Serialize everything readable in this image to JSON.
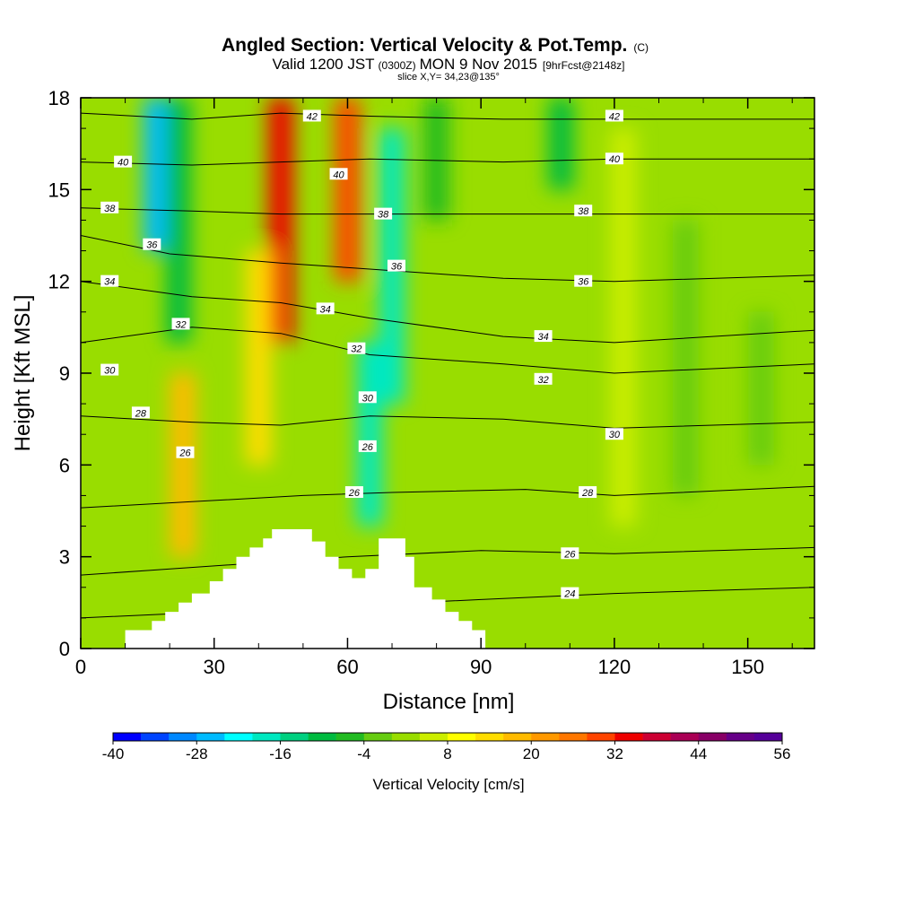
{
  "header": {
    "title": "Angled Section: Vertical Velocity & Pot.Temp.",
    "title_unit": "(C)",
    "valid_a": "Valid 1200 JST",
    "valid_b": "(0300Z)",
    "valid_c": "MON 9 Nov 2015",
    "valid_d": "[9hrFcst@2148z]",
    "slice": "slice X,Y= 34,23@135°"
  },
  "chart_data": {
    "type": "heatmap",
    "xlabel": "Distance [nm]",
    "ylabel": "Height [Kft MSL]",
    "xlim": [
      0,
      165
    ],
    "ylim": [
      0,
      18
    ],
    "x_ticks": [
      0,
      30,
      60,
      90,
      120,
      150
    ],
    "y_ticks": [
      0,
      3,
      6,
      9,
      12,
      15,
      18
    ],
    "grid": false,
    "colorbar": {
      "label": "Vertical Velocity [cm/s]",
      "min": -40,
      "max": 56,
      "step": 4,
      "tick_values": [
        -40,
        -28,
        -16,
        -4,
        8,
        20,
        32,
        44,
        56
      ],
      "colors": [
        "#0000ff",
        "#0044ff",
        "#0088ff",
        "#00bbff",
        "#00ffff",
        "#00e8c0",
        "#00d080",
        "#00bb40",
        "#22bb22",
        "#66cc11",
        "#99dd00",
        "#ccee00",
        "#ffff00",
        "#ffdd00",
        "#ffbb00",
        "#ff9900",
        "#ff7700",
        "#ff4400",
        "#ee0000",
        "#cc0033",
        "#aa0055",
        "#880066",
        "#660088",
        "#550099"
      ]
    },
    "terrain": [
      [
        10,
        0
      ],
      [
        10,
        0.6
      ],
      [
        16,
        0.6
      ],
      [
        16,
        0.9
      ],
      [
        19,
        0.9
      ],
      [
        19,
        1.2
      ],
      [
        22,
        1.2
      ],
      [
        22,
        1.5
      ],
      [
        25,
        1.5
      ],
      [
        25,
        1.8
      ],
      [
        29,
        1.8
      ],
      [
        29,
        2.2
      ],
      [
        32,
        2.2
      ],
      [
        32,
        2.6
      ],
      [
        35,
        2.6
      ],
      [
        35,
        3.0
      ],
      [
        38,
        3.0
      ],
      [
        38,
        3.3
      ],
      [
        41,
        3.3
      ],
      [
        41,
        3.6
      ],
      [
        43,
        3.6
      ],
      [
        43,
        3.9
      ],
      [
        52,
        3.9
      ],
      [
        52,
        3.5
      ],
      [
        55,
        3.5
      ],
      [
        55,
        3.0
      ],
      [
        58,
        3.0
      ],
      [
        58,
        2.6
      ],
      [
        61,
        2.6
      ],
      [
        61,
        2.3
      ],
      [
        64,
        2.3
      ],
      [
        64,
        2.6
      ],
      [
        67,
        2.6
      ],
      [
        67,
        3.6
      ],
      [
        73,
        3.6
      ],
      [
        73,
        3.0
      ],
      [
        75,
        3.0
      ],
      [
        75,
        2.0
      ],
      [
        79,
        2.0
      ],
      [
        79,
        1.6
      ],
      [
        82,
        1.6
      ],
      [
        82,
        1.2
      ],
      [
        85,
        1.2
      ],
      [
        85,
        0.9
      ],
      [
        88,
        0.9
      ],
      [
        88,
        0.6
      ],
      [
        91,
        0.6
      ],
      [
        91,
        0
      ]
    ],
    "wind_features": [
      {
        "x": 17,
        "y0": 18,
        "y1": 13,
        "w": -26
      },
      {
        "x": 22,
        "y0": 18,
        "y1": 10,
        "w": -12
      },
      {
        "x": 45,
        "y0": 18,
        "y1": 10,
        "w": 32
      },
      {
        "x": 60,
        "y0": 18,
        "y1": 12,
        "w": 28
      },
      {
        "x": 23,
        "y0": 9,
        "y1": 3,
        "w": 18
      },
      {
        "x": 40,
        "y0": 13,
        "y1": 6,
        "w": 12
      },
      {
        "x": 65,
        "y0": 10,
        "y1": 4,
        "w": -20
      },
      {
        "x": 70,
        "y0": 17,
        "y1": 8,
        "w": -18
      },
      {
        "x": 80,
        "y0": 18,
        "y1": 14,
        "w": -8
      },
      {
        "x": 108,
        "y0": 18,
        "y1": 15,
        "w": -10
      },
      {
        "x": 122,
        "y0": 17,
        "y1": 4,
        "w": 4
      },
      {
        "x": 136,
        "y0": 14,
        "y1": 5,
        "w": -4
      },
      {
        "x": 153,
        "y0": 11,
        "y1": 6,
        "w": -2
      }
    ],
    "isentropes": [
      {
        "level": 24,
        "label": "24",
        "pts": [
          [
            0,
            1.0
          ],
          [
            30,
            1.2
          ],
          [
            60,
            1.4
          ],
          [
            90,
            1.6
          ],
          [
            120,
            1.8
          ],
          [
            165,
            2.0
          ]
        ]
      },
      {
        "level": 26,
        "label": "26",
        "pts": [
          [
            0,
            2.4
          ],
          [
            30,
            2.7
          ],
          [
            60,
            3.0
          ],
          [
            90,
            3.2
          ],
          [
            120,
            3.1
          ],
          [
            165,
            3.3
          ]
        ]
      },
      {
        "level": 28,
        "label": "28",
        "pts": [
          [
            0,
            4.6
          ],
          [
            25,
            4.8
          ],
          [
            50,
            5.0
          ],
          [
            70,
            5.1
          ],
          [
            100,
            5.2
          ],
          [
            120,
            5.0
          ],
          [
            165,
            5.3
          ]
        ]
      },
      {
        "level": 30,
        "label": "30",
        "pts": [
          [
            0,
            7.6
          ],
          [
            25,
            7.4
          ],
          [
            45,
            7.3
          ],
          [
            65,
            7.6
          ],
          [
            95,
            7.5
          ],
          [
            120,
            7.2
          ],
          [
            165,
            7.4
          ]
        ]
      },
      {
        "level": 32,
        "label": "32",
        "pts": [
          [
            0,
            10.0
          ],
          [
            25,
            10.5
          ],
          [
            45,
            10.3
          ],
          [
            65,
            9.6
          ],
          [
            95,
            9.3
          ],
          [
            120,
            9.0
          ],
          [
            165,
            9.3
          ]
        ]
      },
      {
        "level": 34,
        "label": "34",
        "pts": [
          [
            0,
            12.0
          ],
          [
            25,
            11.5
          ],
          [
            45,
            11.3
          ],
          [
            65,
            10.8
          ],
          [
            95,
            10.2
          ],
          [
            120,
            10.0
          ],
          [
            165,
            10.4
          ]
        ]
      },
      {
        "level": 36,
        "label": "36",
        "pts": [
          [
            0,
            13.5
          ],
          [
            20,
            12.9
          ],
          [
            45,
            12.6
          ],
          [
            65,
            12.4
          ],
          [
            95,
            12.1
          ],
          [
            120,
            12.0
          ],
          [
            165,
            12.2
          ]
        ]
      },
      {
        "level": 38,
        "label": "38",
        "pts": [
          [
            0,
            14.4
          ],
          [
            25,
            14.3
          ],
          [
            45,
            14.2
          ],
          [
            65,
            14.2
          ],
          [
            95,
            14.2
          ],
          [
            120,
            14.2
          ],
          [
            165,
            14.2
          ]
        ]
      },
      {
        "level": 40,
        "label": "40",
        "pts": [
          [
            0,
            15.9
          ],
          [
            25,
            15.8
          ],
          [
            45,
            15.9
          ],
          [
            65,
            16.0
          ],
          [
            95,
            15.9
          ],
          [
            120,
            16.0
          ],
          [
            165,
            16.0
          ]
        ]
      },
      {
        "level": 42,
        "label": "42",
        "pts": [
          [
            0,
            17.5
          ],
          [
            25,
            17.3
          ],
          [
            45,
            17.5
          ],
          [
            65,
            17.4
          ],
          [
            95,
            17.3
          ],
          [
            120,
            17.3
          ],
          [
            165,
            17.3
          ]
        ]
      }
    ],
    "contour_labels": [
      {
        "text": "40",
        "x": 9.5,
        "y": 15.9
      },
      {
        "text": "38",
        "x": 6.5,
        "y": 14.4
      },
      {
        "text": "36",
        "x": 16,
        "y": 13.2
      },
      {
        "text": "34",
        "x": 6.5,
        "y": 12.0
      },
      {
        "text": "32",
        "x": 22.5,
        "y": 10.6
      },
      {
        "text": "30",
        "x": 6.5,
        "y": 9.1
      },
      {
        "text": "28",
        "x": 13.5,
        "y": 7.7
      },
      {
        "text": "26",
        "x": 23.5,
        "y": 6.4
      },
      {
        "text": "42",
        "x": 52,
        "y": 17.4
      },
      {
        "text": "40",
        "x": 58,
        "y": 15.5
      },
      {
        "text": "38",
        "x": 68,
        "y": 14.2
      },
      {
        "text": "36",
        "x": 71,
        "y": 12.5
      },
      {
        "text": "34",
        "x": 55,
        "y": 11.1
      },
      {
        "text": "32",
        "x": 62,
        "y": 9.8
      },
      {
        "text": "30",
        "x": 64.5,
        "y": 8.2
      },
      {
        "text": "26",
        "x": 64.5,
        "y": 6.6
      },
      {
        "text": "26",
        "x": 61.5,
        "y": 5.1
      },
      {
        "text": "42",
        "x": 120,
        "y": 17.4
      },
      {
        "text": "40",
        "x": 120,
        "y": 16.0
      },
      {
        "text": "38",
        "x": 113,
        "y": 14.3
      },
      {
        "text": "36",
        "x": 113,
        "y": 12.0
      },
      {
        "text": "34",
        "x": 104,
        "y": 10.2
      },
      {
        "text": "32",
        "x": 104,
        "y": 8.8
      },
      {
        "text": "30",
        "x": 120,
        "y": 7.0
      },
      {
        "text": "28",
        "x": 114,
        "y": 5.1
      },
      {
        "text": "26",
        "x": 110,
        "y": 3.1
      },
      {
        "text": "24",
        "x": 110,
        "y": 1.8
      }
    ]
  }
}
